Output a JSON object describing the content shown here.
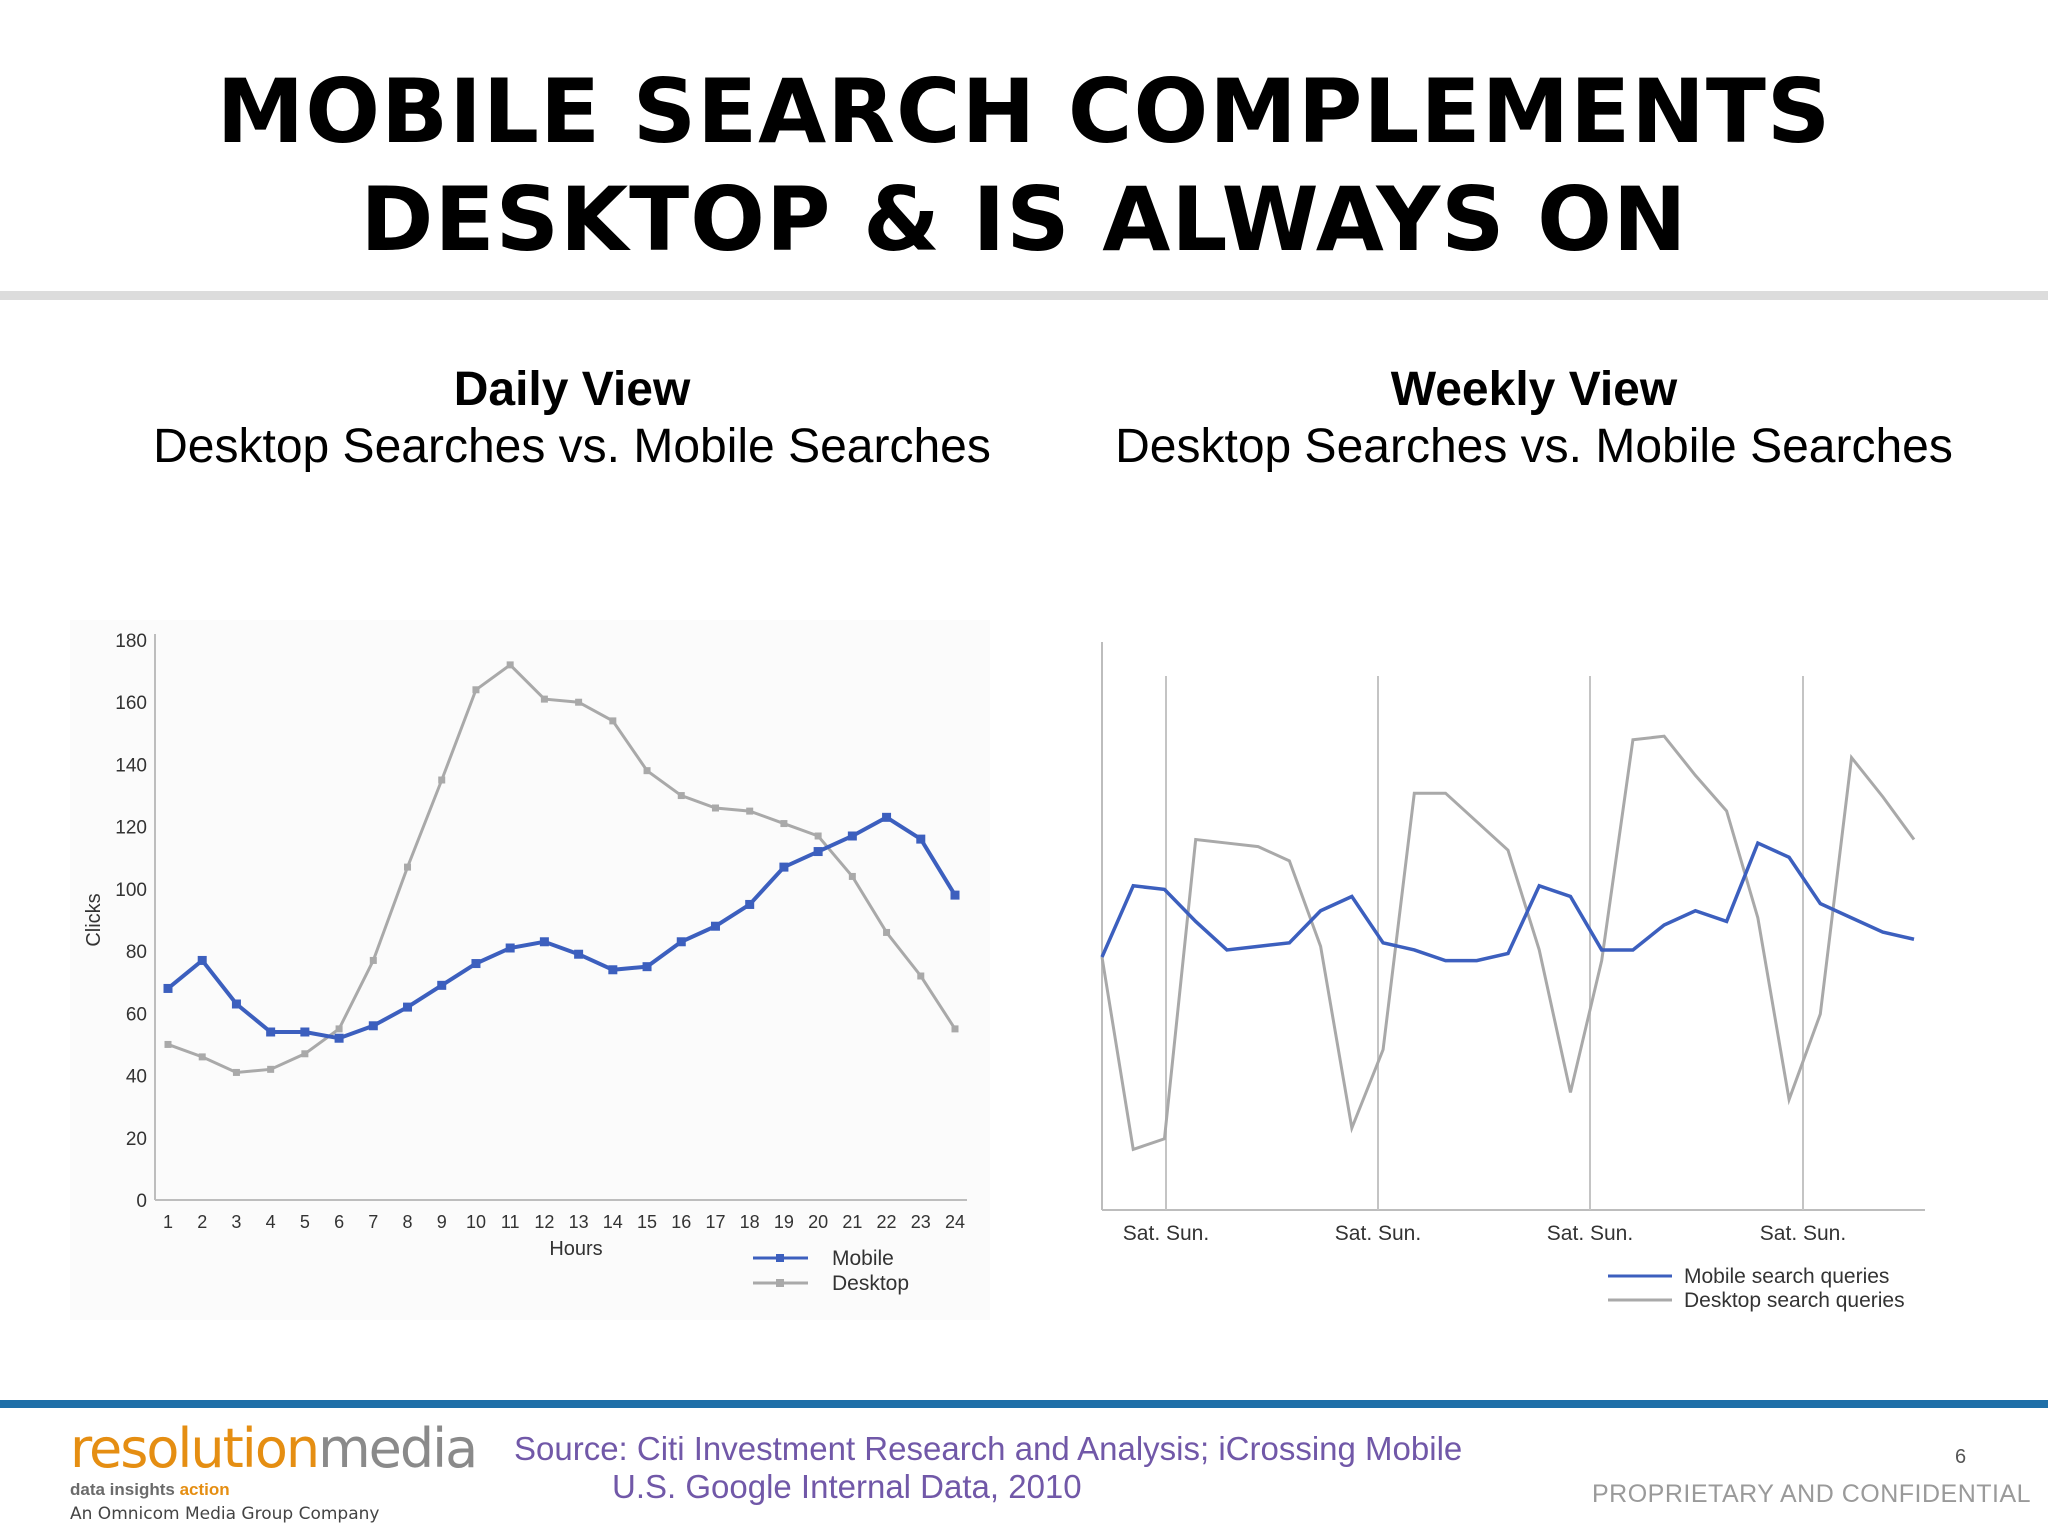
{
  "slide": {
    "title_line1": "MOBILE SEARCH COMPLEMENTS",
    "title_line2": "DESKTOP & IS ALWAYS ON"
  },
  "panels": {
    "daily": {
      "heading": "Daily View",
      "subheading": "Desktop Searches vs. Mobile Searches"
    },
    "weekly": {
      "heading": "Weekly View",
      "subheading": "Desktop Searches vs. Mobile Searches"
    }
  },
  "footer": {
    "logo_part1": "resolution",
    "logo_part2": "media",
    "tagline_part1": "data insights ",
    "tagline_part2": "action",
    "company": "An Omnicom Media Group Company",
    "source_line1": "Source: Citi Investment Research and Analysis; iCrossing Mobile",
    "source_line2": "U.S. Google Internal Data, 2010",
    "page_number": "6",
    "confidential": "PROPRIETARY AND CONFIDENTIAL"
  },
  "colors": {
    "mobile": "#3c5fbe",
    "desktop": "#a9a9a9",
    "accent_bar": "#1f6fa8",
    "source_text": "#7158a8"
  },
  "chart_data": [
    {
      "type": "line",
      "xlabel": "Hours",
      "ylabel": "Clicks",
      "ylim": [
        0,
        180
      ],
      "yticks": [
        0,
        20,
        40,
        60,
        80,
        100,
        120,
        140,
        160,
        180
      ],
      "categories": [
        "1",
        "2",
        "3",
        "4",
        "5",
        "6",
        "7",
        "8",
        "9",
        "10",
        "11",
        "12",
        "13",
        "14",
        "15",
        "16",
        "17",
        "18",
        "19",
        "20",
        "21",
        "22",
        "23",
        "24"
      ],
      "series": [
        {
          "name": "Mobile",
          "color": "#3c5fbe",
          "values": [
            68,
            77,
            63,
            54,
            54,
            52,
            56,
            62,
            69,
            76,
            81,
            83,
            79,
            74,
            75,
            83,
            88,
            95,
            107,
            112,
            117,
            123,
            116,
            98
          ]
        },
        {
          "name": "Desktop",
          "color": "#a9a9a9",
          "values": [
            50,
            46,
            41,
            42,
            47,
            55,
            77,
            107,
            135,
            164,
            172,
            161,
            160,
            154,
            138,
            130,
            126,
            125,
            121,
            117,
            104,
            86,
            72,
            55
          ]
        }
      ],
      "legend_position": "bottom-right",
      "grid": false
    },
    {
      "type": "line",
      "x_labels": [
        "Sat. Sun.",
        "Sat. Sun.",
        "Sat. Sun.",
        "Sat. Sun."
      ],
      "grid": false,
      "legend_position": "bottom-right",
      "series": [
        {
          "name": "Mobile search queries",
          "color": "#3c5fbe",
          "values": [
            91,
            111,
            110,
            101,
            93,
            94,
            95,
            104,
            108,
            95,
            93,
            90,
            90,
            92,
            111,
            108,
            93,
            93,
            100,
            104,
            101,
            123,
            119,
            106,
            102,
            98,
            96
          ]
        },
        {
          "name": "Desktop search queries",
          "color": "#a9a9a9",
          "values": [
            91,
            37,
            40,
            124,
            123,
            122,
            118,
            94,
            43,
            65,
            137,
            137,
            129,
            121,
            93,
            53,
            90,
            152,
            153,
            142,
            132,
            102,
            51,
            75,
            147,
            136,
            124
          ]
        }
      ]
    }
  ]
}
